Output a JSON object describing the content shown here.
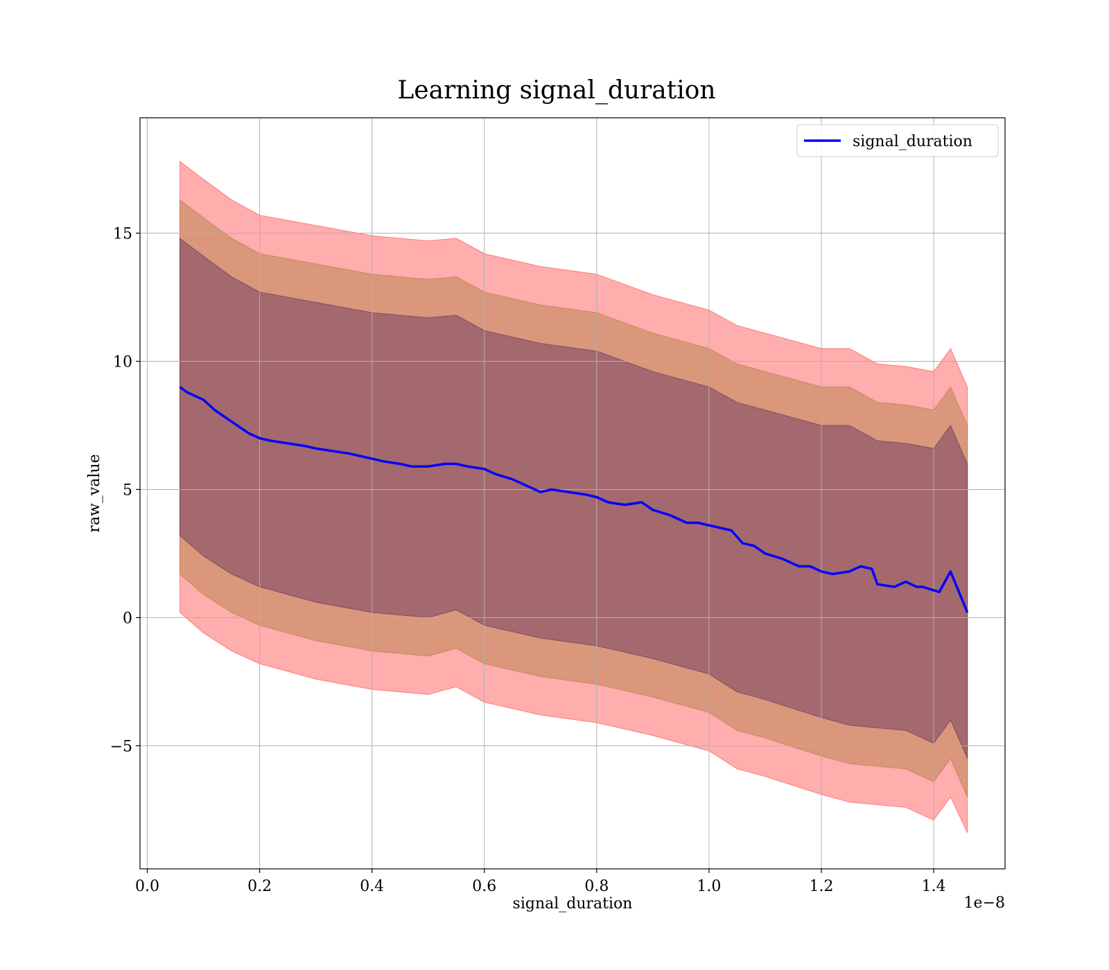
{
  "chart_data": {
    "type": "line",
    "title": "Learning signal_duration",
    "xlabel": "signal_duration",
    "ylabel": "raw_value",
    "x_offset_label": "1e−8",
    "xlim": [
      -0.013,
      1.527
    ],
    "ylim": [
      -9.8,
      19.5
    ],
    "x_ticks": [
      0.0,
      0.2,
      0.4,
      0.6,
      0.8,
      1.0,
      1.2,
      1.4
    ],
    "x_tick_labels": [
      "0.0",
      "0.2",
      "0.4",
      "0.6",
      "0.8",
      "1.0",
      "1.2",
      "1.4"
    ],
    "y_ticks": [
      -5,
      0,
      5,
      10,
      15
    ],
    "y_tick_labels": [
      "−5",
      "0",
      "5",
      "10",
      "15"
    ],
    "grid": true,
    "legend_position": "top-right",
    "series": [
      {
        "name": "signal_duration",
        "color": "#0000ff",
        "x": [
          0.058,
          0.07,
          0.09,
          0.1,
          0.12,
          0.14,
          0.16,
          0.18,
          0.2,
          0.22,
          0.25,
          0.28,
          0.3,
          0.33,
          0.36,
          0.4,
          0.42,
          0.45,
          0.47,
          0.5,
          0.53,
          0.55,
          0.57,
          0.6,
          0.62,
          0.65,
          0.67,
          0.7,
          0.72,
          0.75,
          0.78,
          0.8,
          0.82,
          0.85,
          0.88,
          0.9,
          0.93,
          0.96,
          0.98,
          1.0,
          1.02,
          1.04,
          1.06,
          1.08,
          1.1,
          1.13,
          1.16,
          1.18,
          1.2,
          1.22,
          1.25,
          1.27,
          1.29,
          1.3,
          1.33,
          1.35,
          1.36,
          1.37,
          1.38,
          1.41,
          1.43,
          1.46
        ],
        "y": [
          9.0,
          8.8,
          8.6,
          8.5,
          8.1,
          7.8,
          7.5,
          7.2,
          7.0,
          6.9,
          6.8,
          6.7,
          6.6,
          6.5,
          6.4,
          6.2,
          6.1,
          6.0,
          5.9,
          5.9,
          6.0,
          6.0,
          5.9,
          5.8,
          5.6,
          5.4,
          5.2,
          4.9,
          5.0,
          4.9,
          4.8,
          4.7,
          4.5,
          4.4,
          4.5,
          4.2,
          4.0,
          3.7,
          3.7,
          3.6,
          3.5,
          3.4,
          2.9,
          2.8,
          2.5,
          2.3,
          2.0,
          2.0,
          1.8,
          1.7,
          1.8,
          2.0,
          1.9,
          1.3,
          1.2,
          1.4,
          1.3,
          1.2,
          1.2,
          1.0,
          1.8,
          0.2
        ]
      }
    ],
    "bands": [
      {
        "color": "#ff0000",
        "opacity": 0.32,
        "x": [
          0.058,
          0.1,
          0.15,
          0.2,
          0.3,
          0.4,
          0.5,
          0.55,
          0.6,
          0.7,
          0.8,
          0.9,
          1.0,
          1.05,
          1.1,
          1.2,
          1.25,
          1.3,
          1.35,
          1.4,
          1.43,
          1.46
        ],
        "upper": [
          17.8,
          17.1,
          16.3,
          15.7,
          15.3,
          14.9,
          14.7,
          14.8,
          14.2,
          13.7,
          13.4,
          12.6,
          12.0,
          11.4,
          11.1,
          10.5,
          10.5,
          9.9,
          9.8,
          9.6,
          10.5,
          9.0
        ],
        "lower": [
          0.2,
          -0.6,
          -1.3,
          -1.8,
          -2.4,
          -2.8,
          -3.0,
          -2.7,
          -3.3,
          -3.8,
          -4.1,
          -4.6,
          -5.2,
          -5.9,
          -6.2,
          -6.9,
          -7.2,
          -7.3,
          -7.4,
          -7.9,
          -7.0,
          -8.4
        ]
      },
      {
        "color": "#8b6914",
        "opacity": 0.32,
        "x": [
          0.058,
          0.1,
          0.15,
          0.2,
          0.3,
          0.4,
          0.5,
          0.55,
          0.6,
          0.7,
          0.8,
          0.9,
          1.0,
          1.05,
          1.1,
          1.2,
          1.25,
          1.3,
          1.35,
          1.4,
          1.43,
          1.46
        ],
        "upper": [
          16.3,
          15.6,
          14.8,
          14.2,
          13.8,
          13.4,
          13.2,
          13.3,
          12.7,
          12.2,
          11.9,
          11.1,
          10.5,
          9.9,
          9.6,
          9.0,
          9.0,
          8.4,
          8.3,
          8.1,
          9.0,
          7.5
        ],
        "lower": [
          1.7,
          0.9,
          0.2,
          -0.3,
          -0.9,
          -1.3,
          -1.5,
          -1.2,
          -1.8,
          -2.3,
          -2.6,
          -3.1,
          -3.7,
          -4.4,
          -4.7,
          -5.4,
          -5.7,
          -5.8,
          -5.9,
          -6.4,
          -5.5,
          -7.0
        ]
      },
      {
        "color": "#2e0854",
        "opacity": 0.32,
        "x": [
          0.058,
          0.1,
          0.15,
          0.2,
          0.3,
          0.4,
          0.5,
          0.55,
          0.6,
          0.7,
          0.8,
          0.9,
          1.0,
          1.05,
          1.1,
          1.2,
          1.25,
          1.3,
          1.35,
          1.4,
          1.43,
          1.46
        ],
        "upper": [
          14.8,
          14.1,
          13.3,
          12.7,
          12.3,
          11.9,
          11.7,
          11.8,
          11.2,
          10.7,
          10.4,
          9.6,
          9.0,
          8.4,
          8.1,
          7.5,
          7.5,
          6.9,
          6.8,
          6.6,
          7.5,
          6.0
        ],
        "lower": [
          3.2,
          2.4,
          1.7,
          1.2,
          0.6,
          0.2,
          0.0,
          0.3,
          -0.3,
          -0.8,
          -1.1,
          -1.6,
          -2.2,
          -2.9,
          -3.2,
          -3.9,
          -4.2,
          -4.3,
          -4.4,
          -4.9,
          -4.0,
          -5.5
        ]
      }
    ]
  }
}
